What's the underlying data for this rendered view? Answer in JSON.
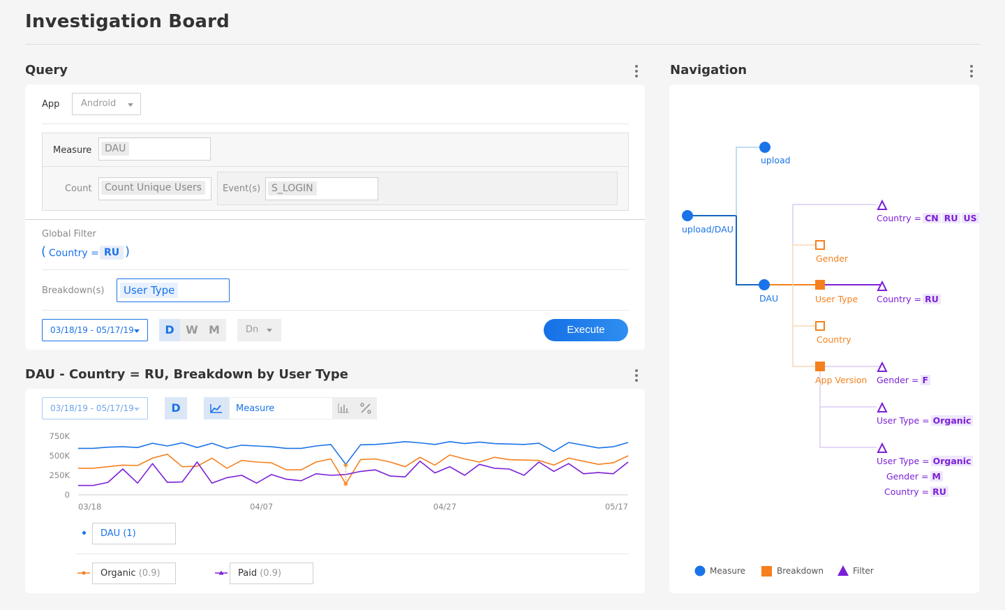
{
  "page": {
    "title": "Investigation Board"
  },
  "query": {
    "title": "Query",
    "app_label": "App",
    "app_value": "Android",
    "measure_label": "Measure",
    "measure_value": "DAU",
    "count_label": "Count",
    "count_value": "Count Unique Users",
    "events_label": "Event(s)",
    "events_value": "S_LOGIN",
    "global_filter_label": "Global Filter",
    "filter_open": "(",
    "filter_field": "Country =",
    "filter_value": "RU",
    "filter_close": ")",
    "breakdown_label": "Breakdown(s)",
    "breakdown_value": "User Type",
    "date_range": "03/18/19 - 05/17/19",
    "granularity": [
      {
        "label": "D",
        "active": true
      },
      {
        "label": "W",
        "active": false
      },
      {
        "label": "M",
        "active": false
      }
    ],
    "dn_value": "Dn",
    "execute_label": "Execute"
  },
  "chart_panel": {
    "title": "DAU - Country = RU, Breakdown by User Type",
    "date_range": "03/18/19 - 05/17/19",
    "granularity": "D",
    "measure_select": "Measure",
    "legend": {
      "total": {
        "name": "DAU",
        "value": "(1)"
      },
      "organic": {
        "name": "Organic",
        "value": "(0.9)"
      },
      "paid": {
        "name": "Paid",
        "value": "(0.9)"
      }
    }
  },
  "chart_data": {
    "type": "line",
    "x_ticks": [
      "03/18",
      "04/07",
      "04/27",
      "05/17"
    ],
    "y_ticks": [
      "0",
      "250K",
      "500K",
      "750K"
    ],
    "ylim": [
      0,
      750000
    ],
    "series": [
      {
        "name": "DAU",
        "color": "#1a73e8",
        "values": [
          595000,
          595000,
          610000,
          615000,
          605000,
          660000,
          625000,
          665000,
          605000,
          660000,
          595000,
          635000,
          625000,
          615000,
          595000,
          595000,
          625000,
          645000,
          390000,
          640000,
          645000,
          660000,
          680000,
          665000,
          645000,
          680000,
          655000,
          675000,
          655000,
          650000,
          645000,
          660000,
          555000,
          670000,
          635000,
          600000,
          615000,
          670000
        ]
      },
      {
        "name": "Organic",
        "color": "#f5801e",
        "values": [
          340000,
          340000,
          360000,
          380000,
          375000,
          470000,
          520000,
          360000,
          365000,
          470000,
          340000,
          440000,
          420000,
          410000,
          320000,
          320000,
          420000,
          460000,
          140000,
          450000,
          460000,
          420000,
          360000,
          480000,
          380000,
          510000,
          460000,
          420000,
          480000,
          450000,
          445000,
          440000,
          380000,
          470000,
          430000,
          390000,
          410000,
          500000
        ]
      },
      {
        "name": "Paid",
        "color": "#7b1fd8",
        "values": [
          120000,
          120000,
          160000,
          330000,
          150000,
          400000,
          160000,
          165000,
          420000,
          150000,
          220000,
          250000,
          150000,
          260000,
          200000,
          180000,
          270000,
          250000,
          260000,
          300000,
          320000,
          240000,
          230000,
          430000,
          280000,
          360000,
          250000,
          390000,
          340000,
          330000,
          250000,
          420000,
          300000,
          400000,
          270000,
          285000,
          270000,
          420000
        ]
      }
    ],
    "annotations": [
      {
        "index": 18,
        "series": "Organic",
        "marker": "circle"
      }
    ]
  },
  "navigation": {
    "title": "Navigation",
    "nodes": {
      "root": "upload/DAU",
      "upload": "upload",
      "dau": "DAU",
      "gender": "Gender",
      "user_type": "User Type",
      "country": "Country",
      "app_version": "App Version"
    },
    "filters": {
      "f1_label": "Country =",
      "f1_chips": [
        "CN",
        "RU",
        "US"
      ],
      "f2_label": "Country =",
      "f2_chips": [
        "RU"
      ],
      "f3_label": "Gender =",
      "f3_chips": [
        "F"
      ],
      "f4_label": "User Type =",
      "f4_chips": [
        "Organic"
      ],
      "f5_line1_label": "User Type =",
      "f5_line1_chip": "Organic",
      "f5_line2_label": "Gender =",
      "f5_line2_chip": "M",
      "f5_line3_label": "Country =",
      "f5_line3_chip": "RU"
    },
    "legend": {
      "measure": "Measure",
      "breakdown": "Breakdown",
      "filter": "Filter"
    },
    "colors": {
      "measure": "#1a73e8",
      "breakdown": "#f5801e",
      "filter": "#7b1fd8"
    }
  }
}
